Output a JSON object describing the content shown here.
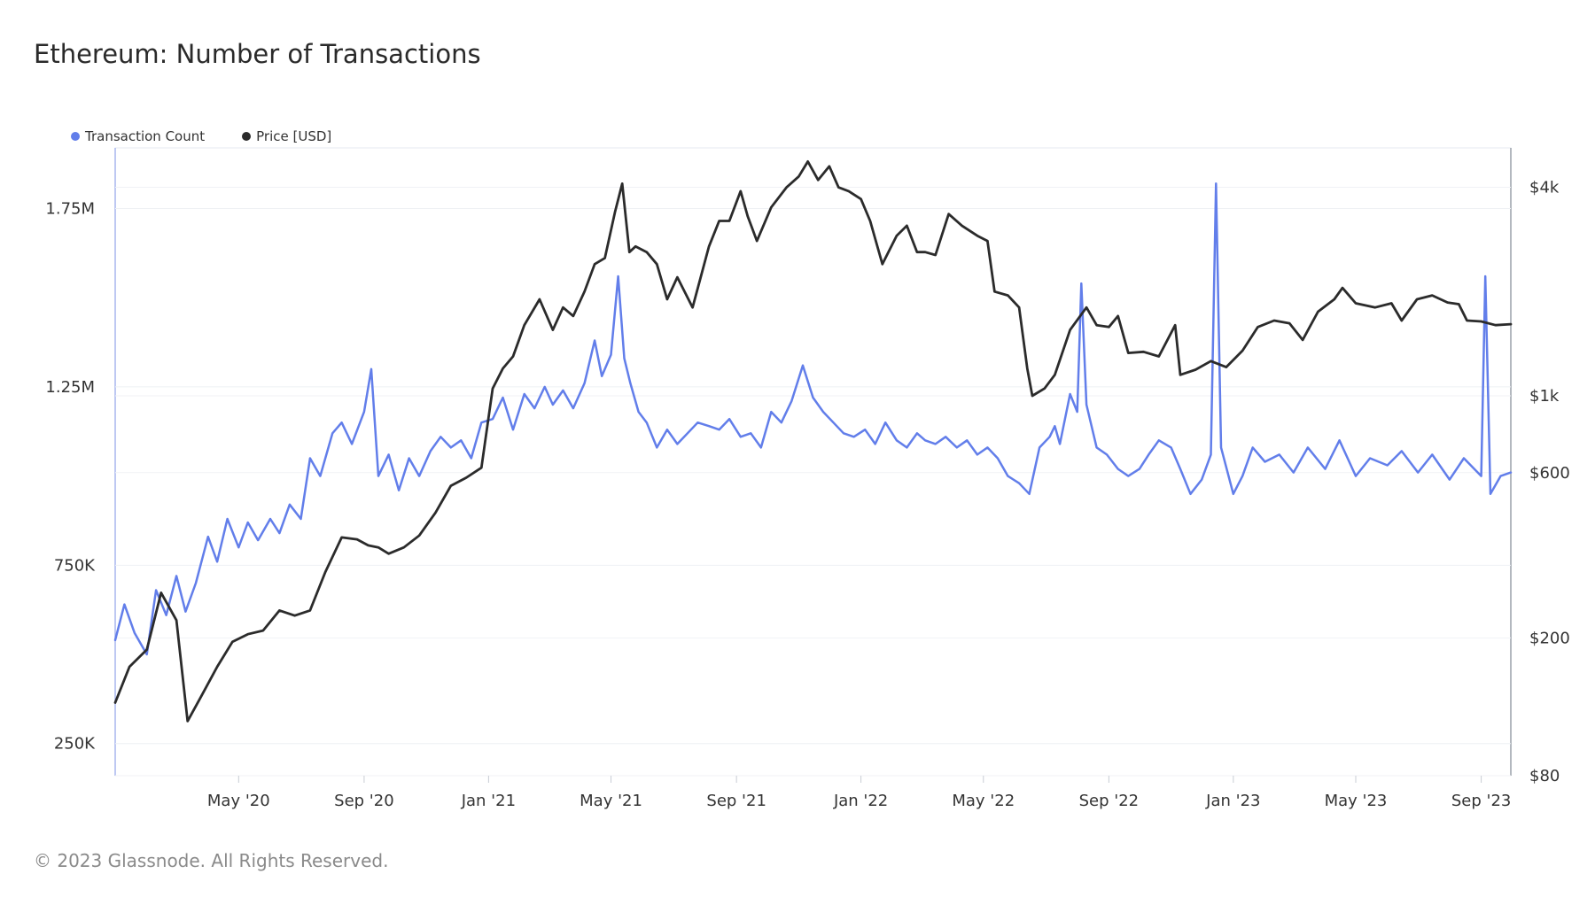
{
  "title": "Ethereum: Number of Transactions",
  "footer": "© 2023 Glassnode. All Rights Reserved.",
  "legend": [
    {
      "label": "Transaction Count",
      "color": "#627eea"
    },
    {
      "label": "Price [USD]",
      "color": "#2b2b2b"
    }
  ],
  "chart_data": {
    "type": "line",
    "title": "Ethereum: Number of Transactions",
    "x_ticks": [
      "May '20",
      "Sep '20",
      "Jan '21",
      "May '21",
      "Sep '21",
      "Jan '22",
      "May '22",
      "Sep '22",
      "Jan '23",
      "May '23",
      "Sep '23"
    ],
    "x_range": [
      "2020-01-01",
      "2023-09-30"
    ],
    "y_left": {
      "ticks": [
        "250K",
        "750K",
        "1.25M",
        "1.75M"
      ],
      "tick_values": [
        250000,
        750000,
        1250000,
        1750000
      ],
      "range": [
        160000,
        1920000
      ]
    },
    "y_right": {
      "scale": "log",
      "ticks": [
        "$80",
        "$200",
        "$600",
        "$1k",
        "$4k"
      ],
      "tick_values": [
        80,
        200,
        600,
        1000,
        4000
      ],
      "range": [
        80,
        5200
      ]
    },
    "grid": true,
    "legend_position": "top-left",
    "series": [
      {
        "name": "Transaction Count",
        "axis": "left",
        "color": "#627eea",
        "points": [
          [
            "2020-01-01",
            540000
          ],
          [
            "2020-01-10",
            640000
          ],
          [
            "2020-01-20",
            560000
          ],
          [
            "2020-02-01",
            500000
          ],
          [
            "2020-02-10",
            680000
          ],
          [
            "2020-02-20",
            610000
          ],
          [
            "2020-03-01",
            720000
          ],
          [
            "2020-03-10",
            620000
          ],
          [
            "2020-03-20",
            700000
          ],
          [
            "2020-04-01",
            830000
          ],
          [
            "2020-04-10",
            760000
          ],
          [
            "2020-04-20",
            880000
          ],
          [
            "2020-05-01",
            800000
          ],
          [
            "2020-05-10",
            870000
          ],
          [
            "2020-05-20",
            820000
          ],
          [
            "2020-06-01",
            880000
          ],
          [
            "2020-06-10",
            840000
          ],
          [
            "2020-06-20",
            920000
          ],
          [
            "2020-07-01",
            880000
          ],
          [
            "2020-07-10",
            1050000
          ],
          [
            "2020-07-20",
            1000000
          ],
          [
            "2020-08-01",
            1120000
          ],
          [
            "2020-08-10",
            1150000
          ],
          [
            "2020-08-20",
            1090000
          ],
          [
            "2020-09-01",
            1180000
          ],
          [
            "2020-09-08",
            1300000
          ],
          [
            "2020-09-15",
            1000000
          ],
          [
            "2020-09-25",
            1060000
          ],
          [
            "2020-10-05",
            960000
          ],
          [
            "2020-10-15",
            1050000
          ],
          [
            "2020-10-25",
            1000000
          ],
          [
            "2020-11-05",
            1070000
          ],
          [
            "2020-11-15",
            1110000
          ],
          [
            "2020-11-25",
            1080000
          ],
          [
            "2020-12-05",
            1100000
          ],
          [
            "2020-12-15",
            1050000
          ],
          [
            "2020-12-25",
            1150000
          ],
          [
            "2021-01-05",
            1160000
          ],
          [
            "2021-01-15",
            1220000
          ],
          [
            "2021-01-25",
            1130000
          ],
          [
            "2021-02-05",
            1230000
          ],
          [
            "2021-02-15",
            1190000
          ],
          [
            "2021-02-25",
            1250000
          ],
          [
            "2021-03-05",
            1200000
          ],
          [
            "2021-03-15",
            1240000
          ],
          [
            "2021-03-25",
            1190000
          ],
          [
            "2021-04-05",
            1260000
          ],
          [
            "2021-04-15",
            1380000
          ],
          [
            "2021-04-22",
            1280000
          ],
          [
            "2021-05-01",
            1340000
          ],
          [
            "2021-05-08",
            1560000
          ],
          [
            "2021-05-14",
            1330000
          ],
          [
            "2021-05-20",
            1260000
          ],
          [
            "2021-05-28",
            1180000
          ],
          [
            "2021-06-05",
            1150000
          ],
          [
            "2021-06-15",
            1080000
          ],
          [
            "2021-06-25",
            1130000
          ],
          [
            "2021-07-05",
            1090000
          ],
          [
            "2021-07-15",
            1120000
          ],
          [
            "2021-07-25",
            1150000
          ],
          [
            "2021-08-05",
            1140000
          ],
          [
            "2021-08-15",
            1130000
          ],
          [
            "2021-08-25",
            1160000
          ],
          [
            "2021-09-05",
            1110000
          ],
          [
            "2021-09-15",
            1120000
          ],
          [
            "2021-09-25",
            1080000
          ],
          [
            "2021-10-05",
            1180000
          ],
          [
            "2021-10-15",
            1150000
          ],
          [
            "2021-10-25",
            1210000
          ],
          [
            "2021-11-05",
            1310000
          ],
          [
            "2021-11-15",
            1220000
          ],
          [
            "2021-11-25",
            1180000
          ],
          [
            "2021-12-05",
            1150000
          ],
          [
            "2021-12-15",
            1120000
          ],
          [
            "2021-12-25",
            1110000
          ],
          [
            "2022-01-05",
            1130000
          ],
          [
            "2022-01-15",
            1090000
          ],
          [
            "2022-01-25",
            1150000
          ],
          [
            "2022-02-05",
            1100000
          ],
          [
            "2022-02-15",
            1080000
          ],
          [
            "2022-02-25",
            1120000
          ],
          [
            "2022-03-05",
            1100000
          ],
          [
            "2022-03-15",
            1090000
          ],
          [
            "2022-03-25",
            1110000
          ],
          [
            "2022-04-05",
            1080000
          ],
          [
            "2022-04-15",
            1100000
          ],
          [
            "2022-04-25",
            1060000
          ],
          [
            "2022-05-05",
            1080000
          ],
          [
            "2022-05-15",
            1050000
          ],
          [
            "2022-05-25",
            1000000
          ],
          [
            "2022-06-05",
            980000
          ],
          [
            "2022-06-15",
            950000
          ],
          [
            "2022-06-25",
            1080000
          ],
          [
            "2022-07-05",
            1110000
          ],
          [
            "2022-07-10",
            1140000
          ],
          [
            "2022-07-15",
            1090000
          ],
          [
            "2022-07-25",
            1230000
          ],
          [
            "2022-08-01",
            1180000
          ],
          [
            "2022-08-05",
            1540000
          ],
          [
            "2022-08-10",
            1200000
          ],
          [
            "2022-08-20",
            1080000
          ],
          [
            "2022-08-30",
            1060000
          ],
          [
            "2022-09-10",
            1020000
          ],
          [
            "2022-09-20",
            1000000
          ],
          [
            "2022-10-01",
            1020000
          ],
          [
            "2022-10-10",
            1060000
          ],
          [
            "2022-10-20",
            1100000
          ],
          [
            "2022-11-01",
            1080000
          ],
          [
            "2022-11-10",
            1020000
          ],
          [
            "2022-11-20",
            950000
          ],
          [
            "2022-12-01",
            990000
          ],
          [
            "2022-12-10",
            1060000
          ],
          [
            "2022-12-15",
            1820000
          ],
          [
            "2022-12-20",
            1080000
          ],
          [
            "2023-01-01",
            950000
          ],
          [
            "2023-01-10",
            1000000
          ],
          [
            "2023-01-20",
            1080000
          ],
          [
            "2023-02-01",
            1040000
          ],
          [
            "2023-02-15",
            1060000
          ],
          [
            "2023-03-01",
            1010000
          ],
          [
            "2023-03-15",
            1080000
          ],
          [
            "2023-04-01",
            1020000
          ],
          [
            "2023-04-15",
            1100000
          ],
          [
            "2023-05-01",
            1000000
          ],
          [
            "2023-05-15",
            1050000
          ],
          [
            "2023-06-01",
            1030000
          ],
          [
            "2023-06-15",
            1070000
          ],
          [
            "2023-07-01",
            1010000
          ],
          [
            "2023-07-15",
            1060000
          ],
          [
            "2023-08-01",
            990000
          ],
          [
            "2023-08-15",
            1050000
          ],
          [
            "2023-09-01",
            1000000
          ],
          [
            "2023-09-05",
            1560000
          ],
          [
            "2023-09-10",
            950000
          ],
          [
            "2023-09-20",
            1000000
          ],
          [
            "2023-09-30",
            1010000
          ]
        ]
      },
      {
        "name": "Price [USD]",
        "axis": "right",
        "color": "#2b2b2b",
        "points": [
          [
            "2020-01-01",
            130
          ],
          [
            "2020-01-15",
            165
          ],
          [
            "2020-02-01",
            185
          ],
          [
            "2020-02-15",
            270
          ],
          [
            "2020-03-01",
            225
          ],
          [
            "2020-03-12",
            115
          ],
          [
            "2020-03-25",
            135
          ],
          [
            "2020-04-10",
            165
          ],
          [
            "2020-04-25",
            195
          ],
          [
            "2020-05-10",
            205
          ],
          [
            "2020-05-25",
            210
          ],
          [
            "2020-06-10",
            240
          ],
          [
            "2020-06-25",
            232
          ],
          [
            "2020-07-10",
            240
          ],
          [
            "2020-07-25",
            310
          ],
          [
            "2020-08-10",
            390
          ],
          [
            "2020-08-25",
            385
          ],
          [
            "2020-09-05",
            370
          ],
          [
            "2020-09-15",
            365
          ],
          [
            "2020-09-25",
            350
          ],
          [
            "2020-10-10",
            365
          ],
          [
            "2020-10-25",
            395
          ],
          [
            "2020-11-10",
            460
          ],
          [
            "2020-11-25",
            550
          ],
          [
            "2020-12-10",
            580
          ],
          [
            "2020-12-25",
            620
          ],
          [
            "2021-01-05",
            1050
          ],
          [
            "2021-01-15",
            1200
          ],
          [
            "2021-01-25",
            1300
          ],
          [
            "2021-02-05",
            1600
          ],
          [
            "2021-02-20",
            1900
          ],
          [
            "2021-03-05",
            1550
          ],
          [
            "2021-03-15",
            1800
          ],
          [
            "2021-03-25",
            1700
          ],
          [
            "2021-04-05",
            2000
          ],
          [
            "2021-04-15",
            2400
          ],
          [
            "2021-04-25",
            2500
          ],
          [
            "2021-05-05",
            3400
          ],
          [
            "2021-05-12",
            4100
          ],
          [
            "2021-05-19",
            2600
          ],
          [
            "2021-05-25",
            2700
          ],
          [
            "2021-06-05",
            2600
          ],
          [
            "2021-06-15",
            2400
          ],
          [
            "2021-06-25",
            1900
          ],
          [
            "2021-07-05",
            2200
          ],
          [
            "2021-07-20",
            1800
          ],
          [
            "2021-08-05",
            2700
          ],
          [
            "2021-08-15",
            3200
          ],
          [
            "2021-08-25",
            3200
          ],
          [
            "2021-09-05",
            3900
          ],
          [
            "2021-09-12",
            3300
          ],
          [
            "2021-09-21",
            2800
          ],
          [
            "2021-10-05",
            3500
          ],
          [
            "2021-10-20",
            4000
          ],
          [
            "2021-11-01",
            4300
          ],
          [
            "2021-11-10",
            4750
          ],
          [
            "2021-11-20",
            4200
          ],
          [
            "2021-12-01",
            4600
          ],
          [
            "2021-12-10",
            4000
          ],
          [
            "2021-12-20",
            3900
          ],
          [
            "2022-01-01",
            3700
          ],
          [
            "2022-01-10",
            3200
          ],
          [
            "2022-01-22",
            2400
          ],
          [
            "2022-02-05",
            2900
          ],
          [
            "2022-02-15",
            3100
          ],
          [
            "2022-02-25",
            2600
          ],
          [
            "2022-03-05",
            2600
          ],
          [
            "2022-03-15",
            2550
          ],
          [
            "2022-03-28",
            3350
          ],
          [
            "2022-04-10",
            3100
          ],
          [
            "2022-04-25",
            2900
          ],
          [
            "2022-05-05",
            2800
          ],
          [
            "2022-05-12",
            2000
          ],
          [
            "2022-05-25",
            1950
          ],
          [
            "2022-06-05",
            1800
          ],
          [
            "2022-06-13",
            1200
          ],
          [
            "2022-06-18",
            1000
          ],
          [
            "2022-06-30",
            1050
          ],
          [
            "2022-07-10",
            1150
          ],
          [
            "2022-07-25",
            1550
          ],
          [
            "2022-08-10",
            1800
          ],
          [
            "2022-08-20",
            1600
          ],
          [
            "2022-09-01",
            1580
          ],
          [
            "2022-09-10",
            1700
          ],
          [
            "2022-09-20",
            1330
          ],
          [
            "2022-10-05",
            1340
          ],
          [
            "2022-10-20",
            1300
          ],
          [
            "2022-11-05",
            1600
          ],
          [
            "2022-11-10",
            1150
          ],
          [
            "2022-11-25",
            1190
          ],
          [
            "2022-12-10",
            1260
          ],
          [
            "2022-12-25",
            1210
          ],
          [
            "2023-01-10",
            1350
          ],
          [
            "2023-01-25",
            1580
          ],
          [
            "2023-02-10",
            1650
          ],
          [
            "2023-02-25",
            1620
          ],
          [
            "2023-03-10",
            1450
          ],
          [
            "2023-03-25",
            1750
          ],
          [
            "2023-04-10",
            1900
          ],
          [
            "2023-04-18",
            2050
          ],
          [
            "2023-05-01",
            1850
          ],
          [
            "2023-05-20",
            1800
          ],
          [
            "2023-06-05",
            1850
          ],
          [
            "2023-06-15",
            1650
          ],
          [
            "2023-06-30",
            1900
          ],
          [
            "2023-07-15",
            1950
          ],
          [
            "2023-07-30",
            1860
          ],
          [
            "2023-08-10",
            1840
          ],
          [
            "2023-08-18",
            1650
          ],
          [
            "2023-09-01",
            1640
          ],
          [
            "2023-09-15",
            1600
          ],
          [
            "2023-09-30",
            1610
          ]
        ]
      }
    ]
  }
}
